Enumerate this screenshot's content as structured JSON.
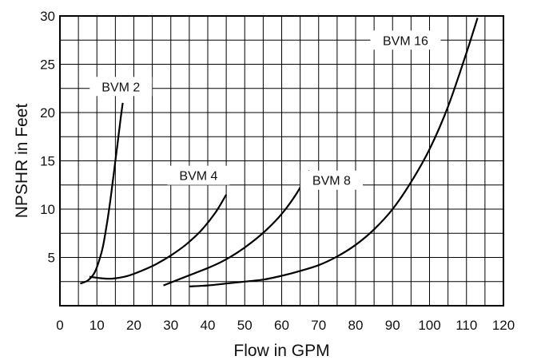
{
  "chart_data": {
    "type": "line",
    "title": "",
    "xlabel": "Flow in GPM",
    "ylabel": "NPSHR in Feet",
    "xlim": [
      0,
      120
    ],
    "ylim": [
      0,
      30
    ],
    "x_ticks": [
      "0",
      "10",
      "20",
      "30",
      "40",
      "50",
      "60",
      "70",
      "80",
      "90",
      "100",
      "110",
      "120"
    ],
    "y_ticks": [
      "5",
      "10",
      "15",
      "20",
      "25",
      "30"
    ],
    "grid": "on (x every 5, y every 2.5)",
    "line_color": "#000000",
    "series": [
      {
        "name": "BVM 2",
        "x": [
          5.5,
          7.5,
          9,
          10,
          11.5,
          12.5,
          13.5,
          14.5,
          15.5,
          16.5,
          17
        ],
        "y": [
          2.3,
          2.6,
          3.2,
          4.0,
          5.9,
          8.0,
          10.5,
          13.5,
          16.5,
          19.6,
          21.0
        ]
      },
      {
        "name": "BVM 4",
        "x": [
          8,
          11,
          14,
          18,
          22,
          26,
          30,
          34,
          38,
          42,
          45
        ],
        "y": [
          3.0,
          2.85,
          2.8,
          3.05,
          3.6,
          4.3,
          5.2,
          6.3,
          7.7,
          9.6,
          11.5
        ]
      },
      {
        "name": "BVM 8",
        "x": [
          28,
          32,
          36,
          40,
          44,
          48,
          52,
          56,
          60,
          64,
          67.5
        ],
        "y": [
          2.1,
          2.7,
          3.3,
          3.9,
          4.6,
          5.5,
          6.6,
          7.9,
          9.5,
          11.6,
          14.0
        ]
      },
      {
        "name": "BVM 16",
        "x": [
          35,
          40,
          45,
          50,
          55,
          60,
          65,
          70,
          75,
          80,
          85,
          90,
          95,
          100,
          105,
          110,
          113
        ],
        "y": [
          2.0,
          2.1,
          2.3,
          2.5,
          2.7,
          3.1,
          3.6,
          4.2,
          5.1,
          6.3,
          7.9,
          10.0,
          12.8,
          16.2,
          20.6,
          26.2,
          29.8
        ]
      }
    ]
  }
}
